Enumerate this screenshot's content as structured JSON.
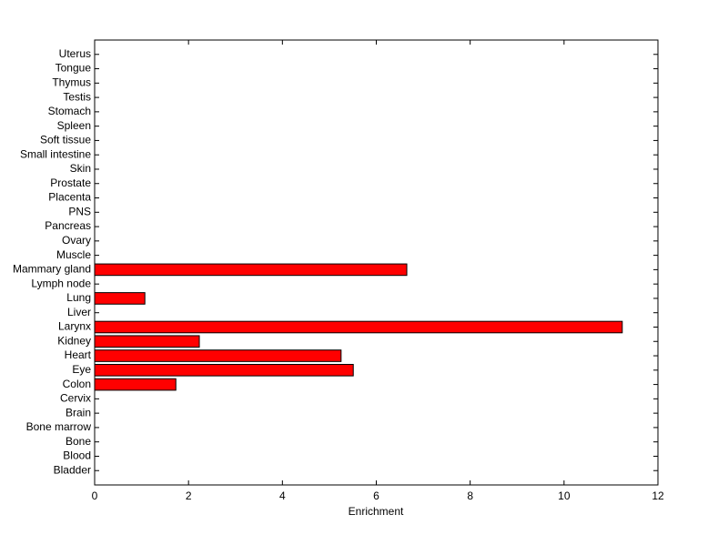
{
  "chart_data": {
    "type": "barh",
    "xlabel": "Enrichment",
    "categories": [
      "Bladder",
      "Blood",
      "Bone",
      "Bone marrow",
      "Brain",
      "Cervix",
      "Colon",
      "Eye",
      "Heart",
      "Kidney",
      "Larynx",
      "Liver",
      "Lung",
      "Lymph node",
      "Mammary gland",
      "Muscle",
      "Ovary",
      "Pancreas",
      "PNS",
      "Placenta",
      "Prostate",
      "Skin",
      "Small intestine",
      "Soft tissue",
      "Spleen",
      "Stomach",
      "Testis",
      "Thymus",
      "Tongue",
      "Uterus"
    ],
    "values": [
      0,
      0,
      0,
      0,
      0,
      0,
      1.73,
      5.51,
      5.25,
      2.23,
      11.24,
      0,
      1.07,
      0,
      6.65,
      0,
      0,
      0,
      0,
      0,
      0,
      0,
      0,
      0,
      0,
      0,
      0,
      0,
      0,
      0
    ],
    "color": "#ff0000",
    "xlim": [
      0,
      12
    ],
    "xticks": [
      0,
      2,
      4,
      6,
      8,
      10,
      12
    ]
  }
}
